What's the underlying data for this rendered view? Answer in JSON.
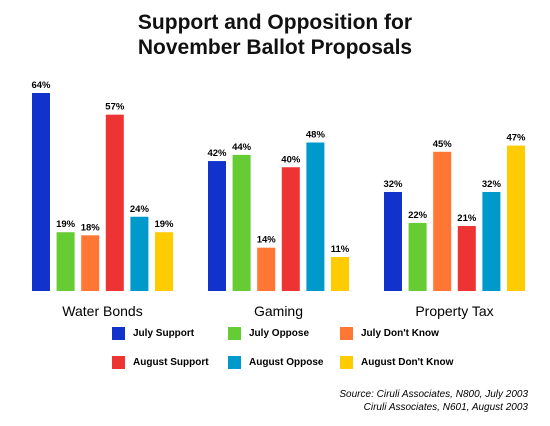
{
  "chart_data": {
    "type": "bar",
    "title": [
      "Support and Opposition for",
      "November Ballot Proposals"
    ],
    "categories": [
      "Water Bonds",
      "Gaming",
      "Property Tax"
    ],
    "series": [
      {
        "name": "July Support",
        "color": "#1133cc",
        "values": [
          64,
          42,
          32
        ],
        "labels": [
          "64%",
          "42%",
          "32%"
        ]
      },
      {
        "name": "July Oppose",
        "color": "#66cc33",
        "values": [
          19,
          44,
          22
        ],
        "labels": [
          "19%",
          "44%",
          "22%"
        ]
      },
      {
        "name": "July Don't Know",
        "color": "#ff7733",
        "values": [
          18,
          14,
          45
        ],
        "labels": [
          "18%",
          "14%",
          "45%"
        ]
      },
      {
        "name": "August Support",
        "color": "#ee3333",
        "values": [
          57,
          40,
          21
        ],
        "labels": [
          "57%",
          "40%",
          "21%"
        ]
      },
      {
        "name": "August Oppose",
        "color": "#0099cc",
        "values": [
          24,
          48,
          32
        ],
        "labels": [
          "24%",
          "48%",
          "32%"
        ]
      },
      {
        "name": "August Don't Know",
        "color": "#ffcc00",
        "values": [
          19,
          11,
          47
        ],
        "labels": [
          "19%",
          "11%",
          "47%"
        ]
      }
    ],
    "ylim": [
      0,
      64
    ],
    "grid": false,
    "legend": "bottom"
  },
  "source": [
    "Source: Ciruli Associates, N800, July 2003",
    "Ciruli Associates, N601, August 2003"
  ]
}
